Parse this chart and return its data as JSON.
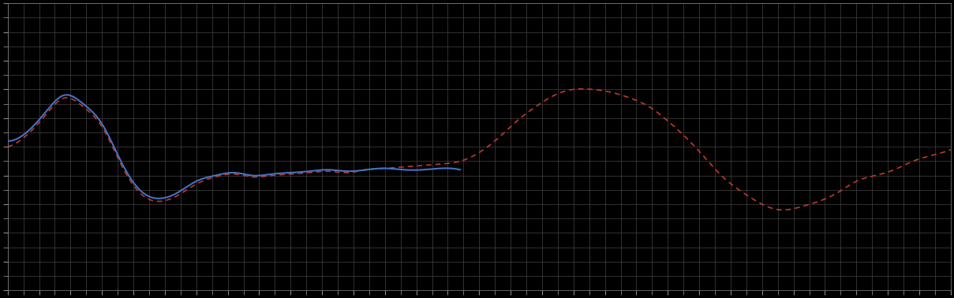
{
  "background_color": "#000000",
  "plot_bg_color": "#000000",
  "grid_color": "#444444",
  "blue_line_color": "#4472C4",
  "red_line_color": "#C0392B",
  "xlim": [
    0,
    100
  ],
  "ylim": [
    0,
    10
  ],
  "figsize": [
    12.09,
    3.78
  ],
  "dpi": 100,
  "spine_color": "#888888",
  "tick_color": "#888888",
  "blue_x": [
    0,
    2,
    4,
    6,
    8,
    10,
    12,
    14,
    16,
    18,
    20,
    22,
    24,
    26,
    28,
    30,
    32,
    34,
    36,
    38,
    40,
    42,
    44,
    46,
    48
  ],
  "blue_y": [
    5.2,
    5.5,
    6.2,
    6.8,
    6.5,
    5.8,
    4.5,
    3.5,
    3.2,
    3.4,
    3.8,
    4.0,
    4.1,
    4.0,
    4.05,
    4.1,
    4.15,
    4.2,
    4.15,
    4.2,
    4.25,
    4.2,
    4.2,
    4.25,
    4.2
  ],
  "red_x": [
    0,
    2,
    4,
    6,
    8,
    10,
    12,
    14,
    16,
    18,
    20,
    22,
    24,
    26,
    28,
    30,
    32,
    34,
    36,
    38,
    40,
    42,
    44,
    46,
    48,
    50,
    52,
    54,
    56,
    58,
    60,
    62,
    64,
    66,
    68,
    70,
    72,
    74,
    76,
    78,
    80,
    82,
    84,
    86,
    88,
    90,
    92,
    94,
    96,
    98,
    100
  ],
  "red_y": [
    5.0,
    5.4,
    6.1,
    6.7,
    6.4,
    5.7,
    4.4,
    3.4,
    3.1,
    3.3,
    3.7,
    3.95,
    4.05,
    3.95,
    4.0,
    4.05,
    4.1,
    4.15,
    4.1,
    4.2,
    4.25,
    4.3,
    4.35,
    4.4,
    4.5,
    4.8,
    5.3,
    5.9,
    6.4,
    6.8,
    7.0,
    7.0,
    6.9,
    6.7,
    6.4,
    5.9,
    5.3,
    4.6,
    3.9,
    3.4,
    3.0,
    2.8,
    2.9,
    3.1,
    3.4,
    3.8,
    4.0,
    4.2,
    4.5,
    4.7,
    4.9
  ]
}
